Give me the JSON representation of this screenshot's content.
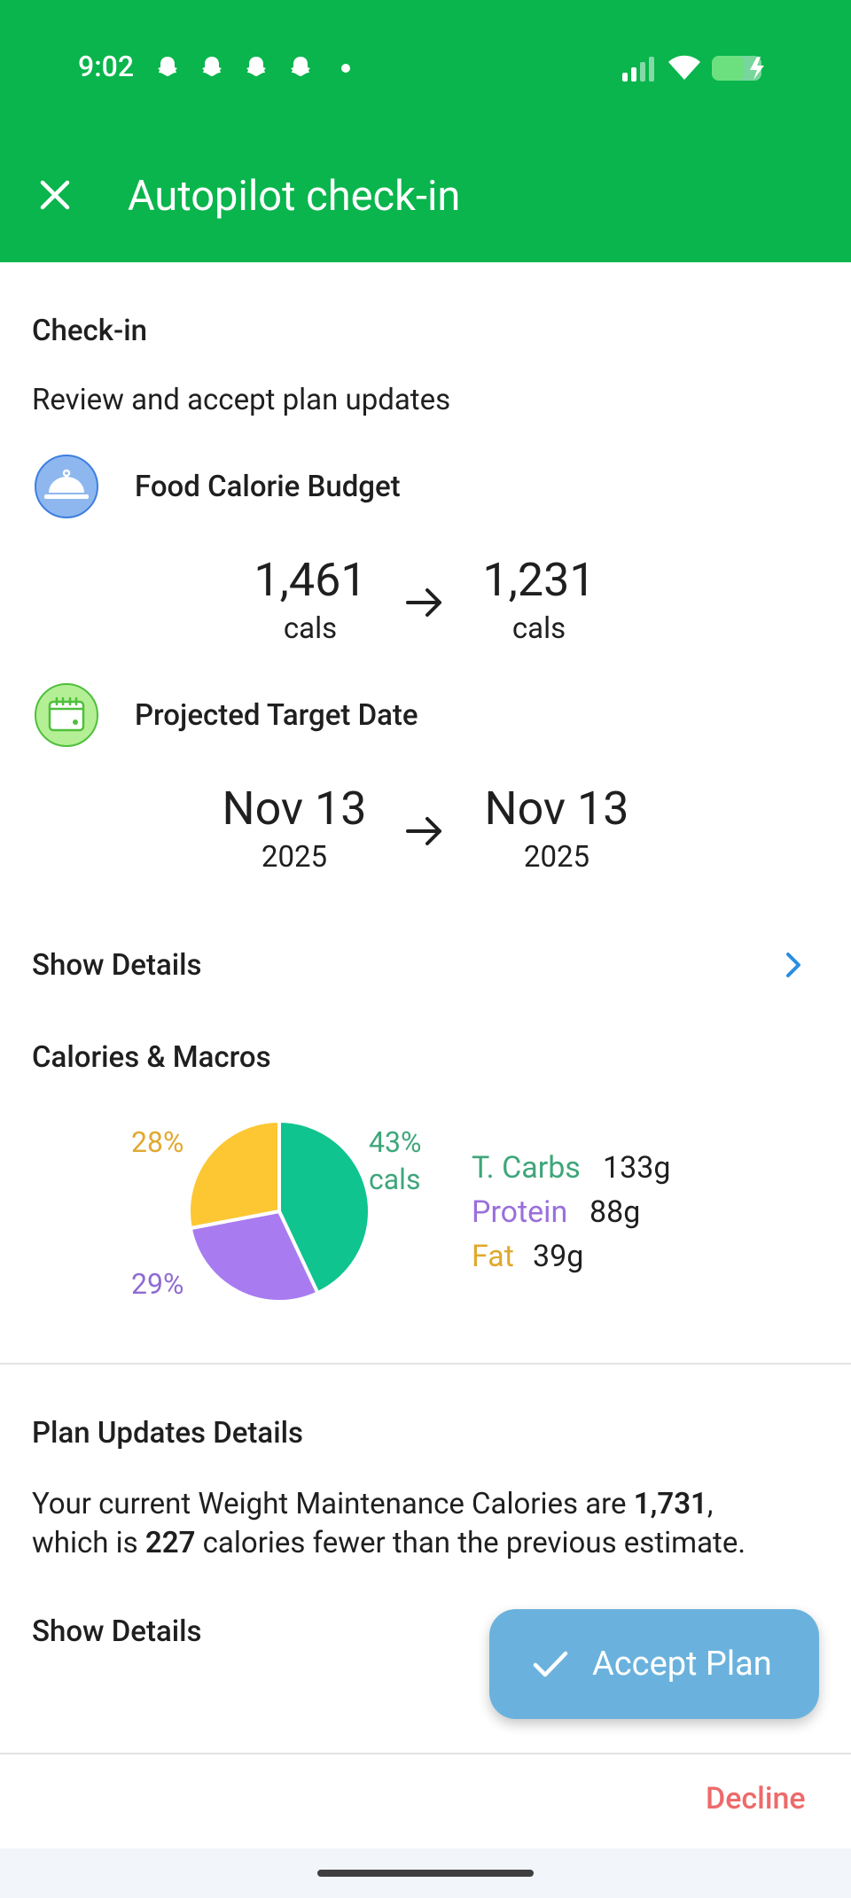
{
  "status_bar": {
    "time": "9:02"
  },
  "header": {
    "title": "Autopilot check-in"
  },
  "checkin": {
    "section_title": "Check-in",
    "subtitle": "Review and accept plan updates",
    "calorie_budget": {
      "label": "Food Calorie Budget",
      "from_value": "1,461",
      "from_unit": "cals",
      "to_value": "1,231",
      "to_unit": "cals"
    },
    "target_date": {
      "label": "Projected Target Date",
      "from_value": "Nov 13",
      "from_year": "2025",
      "to_value": "Nov 13",
      "to_year": "2025"
    },
    "show_details_label": "Show Details"
  },
  "macros": {
    "section_title": "Calories & Macros",
    "cals_label": "cals",
    "colors": {
      "carbs": "#0fc48f",
      "protein": "#a87cf0",
      "fat": "#fcc733"
    },
    "legend": [
      {
        "name": "T. Carbs",
        "value": "133g"
      },
      {
        "name": "Protein",
        "value": "88g"
      },
      {
        "name": "Fat",
        "value": "39g"
      }
    ]
  },
  "chart_data": {
    "type": "pie",
    "slices": [
      {
        "name": "T. Carbs",
        "percent": 43,
        "label": "43%"
      },
      {
        "name": "Protein",
        "percent": 29,
        "label": "29%"
      },
      {
        "name": "Fat",
        "percent": 28,
        "label": "28%"
      }
    ]
  },
  "plan_updates": {
    "section_title": "Plan Updates Details",
    "text_prefix": "Your current Weight Maintenance Calories are ",
    "maintenance_calories": "1,731",
    "text_mid": ",",
    "text_line2_prefix": "which is ",
    "calorie_diff": "227",
    "text_suffix": " calories fewer than the previous estimate.",
    "show_details_label": "Show Details"
  },
  "actions": {
    "accept_label": "Accept Plan",
    "decline_label": "Decline"
  }
}
